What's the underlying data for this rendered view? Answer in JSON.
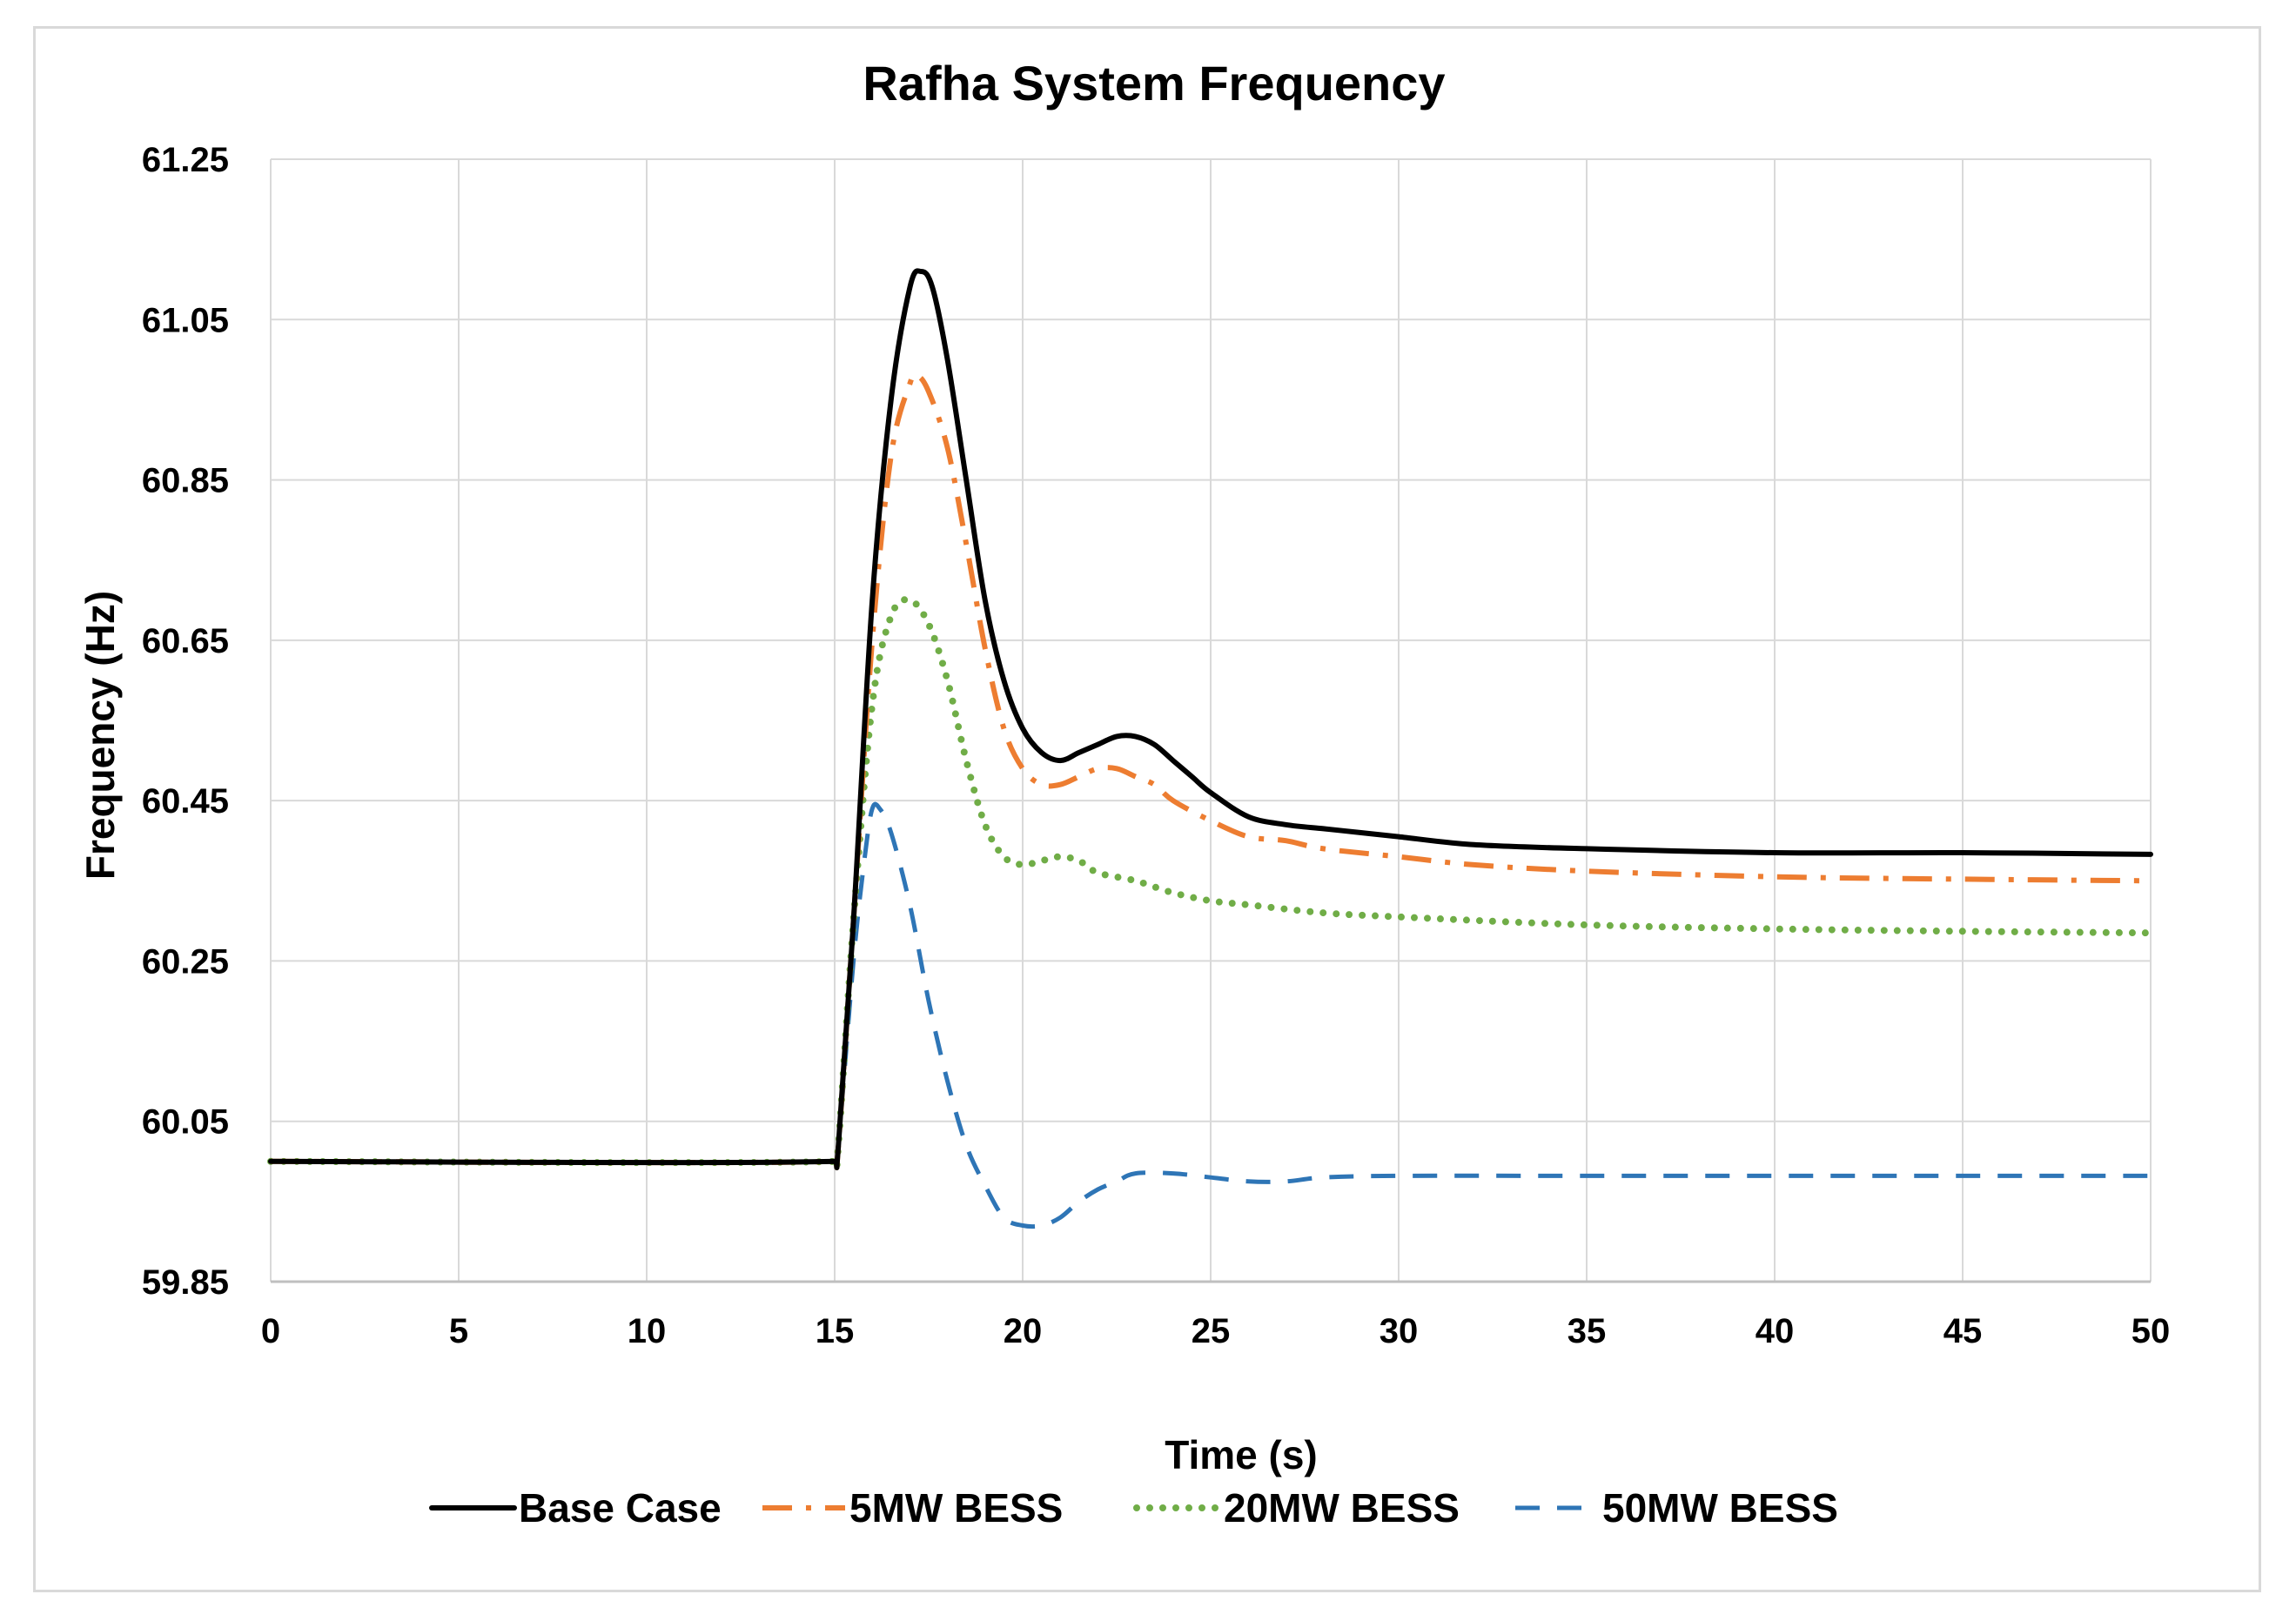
{
  "chart_data": {
    "type": "line",
    "title": "Rafha System Frequency",
    "xlabel": "Time (s)",
    "ylabel": "Frequency (Hz)",
    "xlim": [
      0,
      50
    ],
    "ylim": [
      59.85,
      61.25
    ],
    "xticks": [
      0,
      5,
      10,
      15,
      20,
      25,
      30,
      35,
      40,
      45,
      50
    ],
    "yticks": [
      59.85,
      60.05,
      60.25,
      60.45,
      60.65,
      60.85,
      61.05,
      61.25
    ],
    "ytick_labels": [
      "59.85",
      "60.05",
      "60.25",
      "60.45",
      "60.65",
      "60.85",
      "61.05",
      "61.25"
    ],
    "grid": true,
    "legend_position": "bottom",
    "series": [
      {
        "name": "Base Case",
        "color": "#000000",
        "style": "solid",
        "points": [
          [
            0,
            60.0
          ],
          [
            15,
            60.0
          ],
          [
            15.1,
            60.02
          ],
          [
            15.5,
            60.3
          ],
          [
            16,
            60.7
          ],
          [
            16.5,
            60.95
          ],
          [
            17,
            61.09
          ],
          [
            17.3,
            61.11
          ],
          [
            17.6,
            61.09
          ],
          [
            18,
            61.0
          ],
          [
            18.5,
            60.85
          ],
          [
            19,
            60.7
          ],
          [
            19.5,
            60.6
          ],
          [
            20,
            60.54
          ],
          [
            20.5,
            60.51
          ],
          [
            21,
            60.5
          ],
          [
            21.5,
            60.51
          ],
          [
            22,
            60.52
          ],
          [
            22.5,
            60.53
          ],
          [
            23,
            60.53
          ],
          [
            23.5,
            60.52
          ],
          [
            24,
            60.5
          ],
          [
            24.5,
            60.48
          ],
          [
            25,
            60.46
          ],
          [
            26,
            60.43
          ],
          [
            27,
            60.42
          ],
          [
            28,
            60.415
          ],
          [
            29,
            60.41
          ],
          [
            30,
            60.405
          ],
          [
            32,
            60.395
          ],
          [
            35,
            60.39
          ],
          [
            40,
            60.385
          ],
          [
            45,
            60.385
          ],
          [
            50,
            60.383
          ]
        ]
      },
      {
        "name": "5MW BESS",
        "color": "#ed7d31",
        "style": "dashdot",
        "points": [
          [
            0,
            60.0
          ],
          [
            15,
            60.0
          ],
          [
            15.1,
            60.02
          ],
          [
            15.5,
            60.3
          ],
          [
            16,
            60.65
          ],
          [
            16.5,
            60.88
          ],
          [
            17,
            60.97
          ],
          [
            17.2,
            60.98
          ],
          [
            17.5,
            60.96
          ],
          [
            18,
            60.89
          ],
          [
            18.5,
            60.77
          ],
          [
            19,
            60.64
          ],
          [
            19.5,
            60.54
          ],
          [
            20,
            60.49
          ],
          [
            20.5,
            60.47
          ],
          [
            21,
            60.47
          ],
          [
            21.5,
            60.48
          ],
          [
            22,
            60.49
          ],
          [
            22.5,
            60.49
          ],
          [
            23,
            60.48
          ],
          [
            23.5,
            60.47
          ],
          [
            24,
            60.45
          ],
          [
            25,
            60.425
          ],
          [
            26,
            60.405
          ],
          [
            27,
            60.4
          ],
          [
            28,
            60.39
          ],
          [
            30,
            60.38
          ],
          [
            32,
            60.37
          ],
          [
            35,
            60.362
          ],
          [
            40,
            60.355
          ],
          [
            45,
            60.352
          ],
          [
            50,
            60.35
          ]
        ]
      },
      {
        "name": "20MW BESS",
        "color": "#70ad47",
        "style": "dotted",
        "points": [
          [
            0,
            60.0
          ],
          [
            15,
            60.0
          ],
          [
            15.1,
            60.02
          ],
          [
            15.5,
            60.3
          ],
          [
            16,
            60.57
          ],
          [
            16.5,
            60.68
          ],
          [
            17,
            60.7
          ],
          [
            17.5,
            60.67
          ],
          [
            18,
            60.6
          ],
          [
            18.5,
            60.5
          ],
          [
            19,
            60.42
          ],
          [
            19.5,
            60.38
          ],
          [
            20,
            60.37
          ],
          [
            20.5,
            60.375
          ],
          [
            21,
            60.38
          ],
          [
            21.5,
            60.375
          ],
          [
            22,
            60.36
          ],
          [
            23,
            60.35
          ],
          [
            24,
            60.335
          ],
          [
            25,
            60.325
          ],
          [
            26,
            60.32
          ],
          [
            28,
            60.31
          ],
          [
            30,
            60.305
          ],
          [
            35,
            60.295
          ],
          [
            40,
            60.29
          ],
          [
            45,
            60.287
          ],
          [
            50,
            60.285
          ]
        ]
      },
      {
        "name": "50MW BESS",
        "color": "#2e75b6",
        "style": "dashed",
        "points": [
          [
            0,
            60.0
          ],
          [
            15,
            60.0
          ],
          [
            15.1,
            60.02
          ],
          [
            15.5,
            60.25
          ],
          [
            15.8,
            60.38
          ],
          [
            16,
            60.44
          ],
          [
            16.2,
            60.44
          ],
          [
            16.5,
            60.41
          ],
          [
            17,
            60.32
          ],
          [
            17.5,
            60.2
          ],
          [
            18,
            60.1
          ],
          [
            18.5,
            60.02
          ],
          [
            19,
            59.97
          ],
          [
            19.5,
            59.93
          ],
          [
            20,
            59.92
          ],
          [
            20.5,
            59.92
          ],
          [
            21,
            59.93
          ],
          [
            21.5,
            59.95
          ],
          [
            22,
            59.965
          ],
          [
            22.5,
            59.975
          ],
          [
            23,
            59.985
          ],
          [
            24,
            59.985
          ],
          [
            25,
            59.98
          ],
          [
            26,
            59.975
          ],
          [
            27,
            59.975
          ],
          [
            28,
            59.98
          ],
          [
            30,
            59.982
          ],
          [
            35,
            59.982
          ],
          [
            40,
            59.982
          ],
          [
            45,
            59.982
          ],
          [
            50,
            59.982
          ]
        ]
      }
    ]
  }
}
